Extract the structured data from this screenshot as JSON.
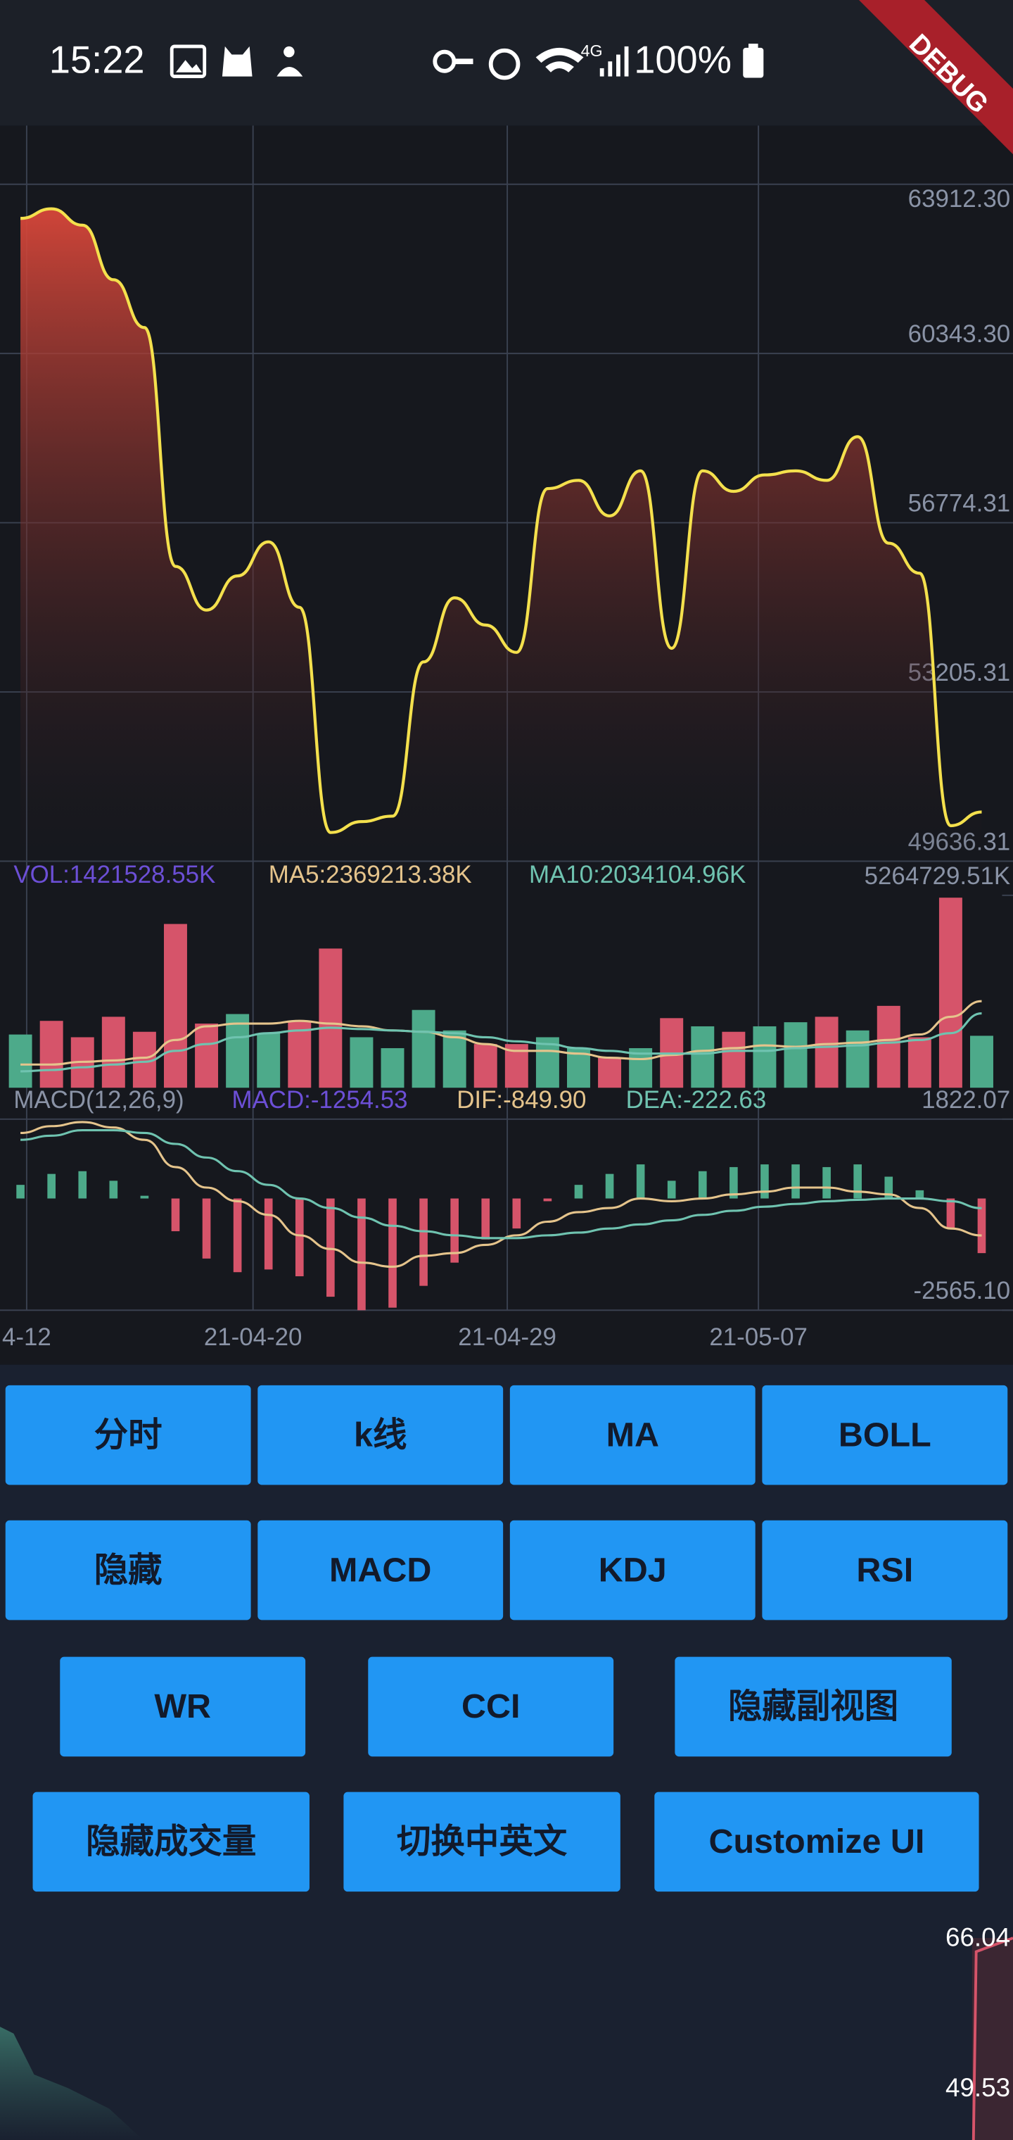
{
  "status_bar": {
    "time": "15:22",
    "battery": "100%"
  },
  "debug_banner": "DEBUG",
  "chart_data": [
    {
      "type": "line",
      "color": "#f4e04d",
      "area_color": "#d9473a",
      "values": [
        63193,
        63394,
        63049,
        61898,
        60890,
        55853,
        54932,
        55652,
        56371,
        54990,
        50241,
        50471,
        50586,
        53839,
        55191,
        54616,
        54040,
        57494,
        57667,
        56918,
        57868,
        54126,
        57868,
        57436,
        57782,
        57868,
        57667,
        58588,
        56343,
        55709,
        50385,
        50673
      ],
      "ylim": [
        49636.31,
        63912.3
      ],
      "yticks": [
        {
          "value": 63912.3,
          "label": "63912.30"
        },
        {
          "value": 60343.3,
          "label": "60343.30"
        },
        56774.31,
        53205.31,
        49636.31
      ],
      "xlim": [
        -0.66,
        32.01
      ],
      "xticks": [
        {
          "value": 0.2,
          "label": "4-12"
        },
        {
          "value": 7.5,
          "label": "21-04-20"
        },
        {
          "value": 15.7,
          "label": "21-04-29"
        },
        {
          "value": 23.8,
          "label": "21-05-07"
        }
      ],
      "grid": true
    },
    {
      "type": "bar",
      "legend": [
        "VOL:1421528.55K",
        "MA5:2369213.38K",
        "MA10:2034104.96K"
      ],
      "legend_colors": [
        "#6c4fd6",
        "#e5c48c",
        "#6fc3b0"
      ],
      "values": [
        1456200,
        1829587,
        1381525,
        1941602,
        1530879,
        4480620,
        1754910,
        2016279,
        1493540,
        1829587,
        3808527,
        1381525,
        1082817,
        2128295,
        1568217,
        1194832,
        1194832,
        1381525,
        1082817,
        821447,
        1082817,
        1904264,
        1680233,
        1530879,
        1680233,
        1792248,
        1941602,
        1568217,
        2240310,
        1381525,
        5200000,
        1421528.55
      ],
      "colors": [
        "#4daa8a",
        "#d6546a",
        "#d6546a",
        "#d6546a",
        "#d6546a",
        "#d6546a",
        "#d6546a",
        "#4daa8a",
        "#4daa8a",
        "#d6546a",
        "#d6546a",
        "#4daa8a",
        "#4daa8a",
        "#4daa8a",
        "#4daa8a",
        "#d6546a",
        "#d6546a",
        "#4daa8a",
        "#4daa8a",
        "#d6546a",
        "#4daa8a",
        "#d6546a",
        "#4daa8a",
        "#d6546a",
        "#4daa8a",
        "#4daa8a",
        "#d6546a",
        "#4daa8a",
        "#d6546a",
        "#d6546a",
        "#d6546a",
        "#4daa8a"
      ],
      "lines": [
        {
          "color": "#e5c48c",
          "values": [
            634755,
            634755,
            709432,
            746770,
            821447,
            1306848,
            1680233,
            1754910,
            1754910,
            1829587,
            1754910,
            1680233,
            1568217,
            1530879,
            1381525,
            1194832,
            1008140,
            1008140,
            933463,
            821447,
            784109,
            896124,
            1008140,
            1082817,
            1157494,
            1120155,
            1194832,
            1232171,
            1306848,
            1456200,
            1941602,
            2369213.38
          ]
        },
        {
          "color": "#6fc3b0",
          "values": [
            448062,
            485401,
            560078,
            634755,
            709432,
            1008140,
            1194832,
            1381525,
            1493540,
            1568217,
            1642894,
            1605556,
            1568217,
            1530879,
            1493540,
            1381525,
            1269509,
            1194832,
            1082817,
            1008140,
            933463,
            933463,
            933463,
            1008140,
            1008140,
            1082817,
            1120155,
            1157494,
            1232171,
            1306848,
            1493540,
            2034104.96
          ]
        }
      ],
      "ylim": [
        0,
        5264729.51
      ],
      "yticks": [
        {
          "value": 5264729.51,
          "label": "5264729.51K"
        }
      ]
    },
    {
      "type": "bar",
      "legend": [
        "MACD(12,26,9)",
        "MACD:-1254.53",
        "DIF:-849.90",
        "DEA:-222.63"
      ],
      "legend_colors": [
        "#8a93a6",
        "#6c4fd6",
        "#e5c48c",
        "#6fc3b0"
      ],
      "color_up": "#4daa8a",
      "color_down": "#d6546a",
      "values": [
        313,
        564,
        627,
        407,
        63,
        -752,
        -1379,
        -1692,
        -1630,
        -1786,
        -2256,
        -2565,
        -2507,
        -2006,
        -1473,
        -940,
        -689,
        -63,
        313,
        564,
        783,
        407,
        627,
        721,
        783,
        783,
        721,
        783,
        501,
        188,
        -689,
        -1254.53
      ],
      "lines": [
        {
          "color": "#e5c48c",
          "values": [
            1504,
            1661,
            1755,
            1630,
            1347,
            721,
            251,
            -63,
            -376,
            -846,
            -1159,
            -1473,
            -1567,
            -1316,
            -1253,
            -1065,
            -846,
            -533,
            -313,
            -219,
            0,
            -63,
            0,
            94,
            157,
            251,
            251,
            157,
            94,
            -219,
            -689,
            -849.9
          ]
        },
        {
          "color": "#6fc3b0",
          "values": [
            1347,
            1442,
            1567,
            1567,
            1504,
            1253,
            940,
            627,
            313,
            0,
            -219,
            -439,
            -627,
            -752,
            -846,
            -909,
            -909,
            -846,
            -783,
            -689,
            -595,
            -501,
            -376,
            -282,
            -188,
            -125,
            -63,
            -31,
            0,
            0,
            -63,
            -222.63
          ]
        }
      ],
      "ylim": [
        -2565.1,
        1822.07
      ],
      "yticks": [
        1822.07,
        {
          "value": -2565.1,
          "label": "-2565.10"
        }
      ]
    }
  ],
  "buttons": [
    [
      "分时",
      "k线",
      "MA",
      "BOLL"
    ],
    [
      "隐藏",
      "MACD",
      "KDJ",
      "RSI"
    ],
    [
      "WR",
      "CCI",
      "隐藏副视图"
    ],
    [
      "隐藏成交量",
      "切换中英文",
      "Customize UI"
    ]
  ],
  "bottom_chart": {
    "labels": [
      "66.04",
      "49.53"
    ]
  }
}
